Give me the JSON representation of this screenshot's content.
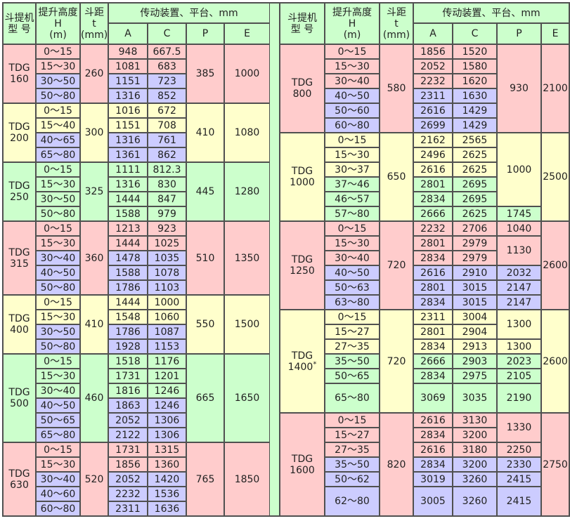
{
  "colors": {
    "p": "#ffcccc",
    "y": "#ffffcc",
    "g": "#ccffcc",
    "b": "#ccccff",
    "header": "#ccffcc",
    "border": "#505050"
  },
  "header": {
    "model": "斗提机\n型 号",
    "height": "提升高度\nH\n(m)",
    "pitch": "斗距\nt\n(mm)",
    "drive": "传动装置、平台、mm",
    "A": "A",
    "C": "C",
    "P": "P",
    "E": "E"
  },
  "tables": [
    {
      "groups": [
        {
          "model": "TDG\n160",
          "color": "p",
          "t": "260",
          "E": "1000",
          "P": [
            {
              "value": "385",
              "span": 4,
              "color": "p"
            }
          ],
          "rows": [
            {
              "H": "0～15",
              "A": "948",
              "C": "667.5",
              "color": "p"
            },
            {
              "H": "15～30",
              "A": "1081",
              "C": "683",
              "color": "p"
            },
            {
              "H": "30～50",
              "A": "1151",
              "C": "723",
              "color": "b"
            },
            {
              "H": "50～80",
              "A": "1316",
              "C": "852",
              "color": "b"
            }
          ]
        },
        {
          "model": "TDG\n200",
          "color": "y",
          "t": "300",
          "E": "1080",
          "P": [
            {
              "value": "410",
              "span": 4,
              "color": "y"
            }
          ],
          "rows": [
            {
              "H": "0～15",
              "A": "1016",
              "C": "672",
              "color": "y"
            },
            {
              "H": "15～40",
              "A": "1151",
              "C": "708",
              "color": "y"
            },
            {
              "H": "40～65",
              "A": "1316",
              "C": "761",
              "color": "b"
            },
            {
              "H": "65～80",
              "A": "1361",
              "C": "862",
              "color": "b"
            }
          ]
        },
        {
          "model": "TDG\n250",
          "color": "g",
          "t": "325",
          "E": "1280",
          "P": [
            {
              "value": "445",
              "span": 4,
              "color": "g"
            }
          ],
          "rows": [
            {
              "H": "0～15",
              "A": "1111",
              "C": "812.3",
              "color": "g"
            },
            {
              "H": "15～30",
              "A": "1316",
              "C": "830",
              "color": "g"
            },
            {
              "H": "30～50",
              "A": "1444",
              "C": "847",
              "color": "g"
            },
            {
              "H": "50～80",
              "A": "1588",
              "C": "979",
              "color": "g"
            }
          ]
        },
        {
          "model": "TDG\n315",
          "color": "p",
          "t": "360",
          "E": "1350",
          "P": [
            {
              "value": "510",
              "span": 5,
              "color": "p"
            }
          ],
          "rows": [
            {
              "H": "0～15",
              "A": "1213",
              "C": "923",
              "color": "p"
            },
            {
              "H": "15～30",
              "A": "1444",
              "C": "1025",
              "color": "p"
            },
            {
              "H": "30～40",
              "A": "1478",
              "C": "1035",
              "color": "b"
            },
            {
              "H": "40～50",
              "A": "1588",
              "C": "1078",
              "color": "b"
            },
            {
              "H": "50～80",
              "A": "1786",
              "C": "1103",
              "color": "b"
            }
          ]
        },
        {
          "model": "TDG\n400",
          "color": "y",
          "t": "410",
          "E": "1500",
          "P": [
            {
              "value": "550",
              "span": 4,
              "color": "y"
            }
          ],
          "rows": [
            {
              "H": "0～15",
              "A": "1444",
              "C": "1000",
              "color": "y"
            },
            {
              "H": "15～30",
              "A": "1548",
              "C": "1060",
              "color": "y"
            },
            {
              "H": "30～50",
              "A": "1786",
              "C": "1087",
              "color": "b"
            },
            {
              "H": "50～80",
              "A": "1928",
              "C": "1153",
              "color": "b"
            }
          ]
        },
        {
          "model": "TDG\n500",
          "color": "g",
          "t": "460",
          "E": "1650",
          "P": [
            {
              "value": "665",
              "span": 6,
              "color": "g"
            }
          ],
          "rows": [
            {
              "H": "0～15",
              "A": "1518",
              "C": "1176",
              "color": "g"
            },
            {
              "H": "15～30",
              "A": "1731",
              "C": "1201",
              "color": "g"
            },
            {
              "H": "30～40",
              "A": "1816",
              "C": "1246",
              "color": "g"
            },
            {
              "H": "40～50",
              "A": "1863",
              "C": "1246",
              "color": "b"
            },
            {
              "H": "50～65",
              "A": "2052",
              "C": "1306",
              "color": "b"
            },
            {
              "H": "65～80",
              "A": "2122",
              "C": "1306",
              "color": "b"
            }
          ]
        },
        {
          "model": "TDG\n630",
          "color": "p",
          "t": "520",
          "E": "1850",
          "P": [
            {
              "value": "765",
              "span": 5,
              "color": "p"
            }
          ],
          "rows": [
            {
              "H": "0～15",
              "A": "1731",
              "C": "1315",
              "color": "p"
            },
            {
              "H": "15～30",
              "A": "1856",
              "C": "1360",
              "color": "p"
            },
            {
              "H": "30～40",
              "A": "2052",
              "C": "1420",
              "color": "b"
            },
            {
              "H": "40～60",
              "A": "2232",
              "C": "1536",
              "color": "b"
            },
            {
              "H": "60～80",
              "A": "2311",
              "C": "1636",
              "color": "b"
            }
          ]
        }
      ]
    },
    {
      "groups": [
        {
          "model": "TDG\n800",
          "color": "p",
          "t": "580",
          "E": "2100",
          "P": [
            {
              "value": "930",
              "span": 6,
              "color": "p"
            }
          ],
          "rows": [
            {
              "H": "0～15",
              "A": "1856",
              "C": "1520",
              "color": "p"
            },
            {
              "H": "15～30",
              "A": "2052",
              "C": "1580",
              "color": "p"
            },
            {
              "H": "30～40",
              "A": "2232",
              "C": "1620",
              "color": "p"
            },
            {
              "H": "40～50",
              "A": "2311",
              "C": "1630",
              "color": "b"
            },
            {
              "H": "50～60",
              "A": "2616",
              "C": "1429",
              "color": "b"
            },
            {
              "H": "60～80",
              "A": "2699",
              "C": "1429",
              "color": "b"
            }
          ]
        },
        {
          "model": "TDG\n1000",
          "color": "y",
          "t": "650",
          "E": "2500",
          "P": [
            {
              "value": "1000",
              "span": 5,
              "color": "y"
            },
            {
              "value": "1745",
              "span": 1,
              "color": "g"
            }
          ],
          "rows": [
            {
              "H": "0～15",
              "A": "2162",
              "C": "2565",
              "color": "y"
            },
            {
              "H": "15～30",
              "A": "2496",
              "C": "2625",
              "color": "y"
            },
            {
              "H": "30～37",
              "A": "2616",
              "C": "2625",
              "color": "y"
            },
            {
              "H": "37～46",
              "A": "2801",
              "C": "2695",
              "color": "g"
            },
            {
              "H": "46～57",
              "A": "2834",
              "C": "2695",
              "color": "g"
            },
            {
              "H": "57～80",
              "A": "2666",
              "C": "2625",
              "color": "g"
            }
          ]
        },
        {
          "model": "TDG\n1250",
          "color": "p",
          "t": "720",
          "E": "2600",
          "P": [
            {
              "value": "1040",
              "span": 1,
              "color": "p"
            },
            {
              "value": "1130",
              "span": 2,
              "color": "p"
            },
            {
              "value": "2032",
              "span": 1,
              "color": "b"
            },
            {
              "value": "2147",
              "span": 1,
              "color": "b"
            },
            {
              "value": "2147",
              "span": 1,
              "color": "b"
            }
          ],
          "rows": [
            {
              "H": "0～15",
              "A": "2232",
              "C": "2706",
              "color": "p"
            },
            {
              "H": "15～30",
              "A": "2801",
              "C": "2979",
              "color": "p"
            },
            {
              "H": "30～40",
              "A": "2834",
              "C": "2979",
              "color": "p"
            },
            {
              "H": "40～50",
              "A": "2616",
              "C": "2910",
              "color": "b"
            },
            {
              "H": "50～63",
              "A": "2801",
              "C": "3015",
              "color": "b"
            },
            {
              "H": "63～80",
              "A": "2834",
              "C": "3015",
              "color": "b"
            }
          ]
        },
        {
          "model": "TDG\n1400",
          "model_mark": "*",
          "color": "y",
          "t": "720",
          "E": "2600",
          "P": [
            {
              "value": "1300",
              "span": 2,
              "color": "y"
            },
            {
              "value": "1300",
              "span": 1,
              "color": "y"
            },
            {
              "value": "2023",
              "span": 1,
              "color": "g"
            },
            {
              "value": "2105",
              "span": 1,
              "color": "g"
            },
            {
              "value": "2190",
              "span": 1,
              "color": "g"
            }
          ],
          "rows": [
            {
              "H": "0～15",
              "A": "2311",
              "C": "3004",
              "color": "y"
            },
            {
              "H": "15～27",
              "A": "2801",
              "C": "2904",
              "color": "y"
            },
            {
              "H": "27～35",
              "A": "2834",
              "C": "2913",
              "color": "y"
            },
            {
              "H": "35～50",
              "A": "2666",
              "C": "2903",
              "color": "g"
            },
            {
              "H": "50～65",
              "A": "2834",
              "C": "2975",
              "color": "g"
            },
            {
              "H": "65～80",
              "A": "3069",
              "C": "3035",
              "color": "g",
              "tall": true
            }
          ]
        },
        {
          "model": "TDG\n1600",
          "color": "p",
          "t": "820",
          "E": "2750",
          "P": [
            {
              "value": "1330",
              "span": 2,
              "color": "p"
            },
            {
              "value": "2250",
              "span": 1,
              "color": "p"
            },
            {
              "value": "2330",
              "span": 1,
              "color": "b"
            },
            {
              "value": "2415",
              "span": 1,
              "color": "b"
            },
            {
              "value": "2415",
              "span": 1,
              "color": "b"
            }
          ],
          "rows": [
            {
              "H": "0～15",
              "A": "2616",
              "C": "3130",
              "color": "p"
            },
            {
              "H": "15～27",
              "A": "2834",
              "C": "3200",
              "color": "p"
            },
            {
              "H": "27～35",
              "A": "2616",
              "C": "3180",
              "color": "p"
            },
            {
              "H": "35～50",
              "A": "2834",
              "C": "3200",
              "color": "b"
            },
            {
              "H": "50～62",
              "A": "3019",
              "C": "3260",
              "color": "b"
            },
            {
              "H": "62～80",
              "A": "3005",
              "C": "3260",
              "color": "b",
              "tall": true
            }
          ]
        }
      ]
    }
  ]
}
